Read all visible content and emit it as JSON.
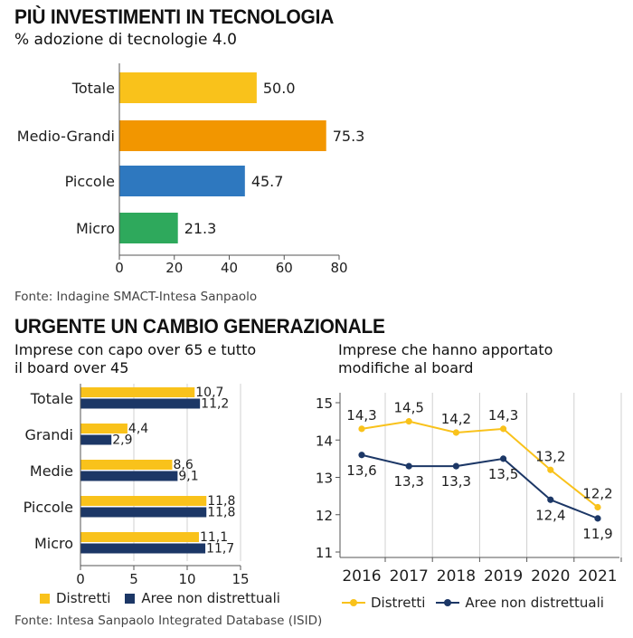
{
  "section1": {
    "title": "PIÙ INVESTIMENTI IN TECNOLOGIA",
    "subtitle": "% adozione di tecnologie 4.0",
    "source": "Fonte: Indagine SMACT-Intesa Sanpaolo"
  },
  "section2": {
    "title": "URGENTE UN CAMBIO GENERAZIONALE",
    "left_subtitle_line1": "Imprese con capo over 65 e tutto",
    "left_subtitle_line2": "il board over 45",
    "right_subtitle_line1": "Imprese che hanno apportato",
    "right_subtitle_line2": "modifiche al board",
    "legend_left": [
      {
        "label": "Distretti",
        "color": "#f9c21b"
      },
      {
        "label": "Aree non distrettuali",
        "color": "#1c3766"
      }
    ],
    "legend_right": [
      {
        "label": "Distretti",
        "color": "#f9c21b"
      },
      {
        "label": "Aree non distrettuali",
        "color": "#1c3766"
      }
    ],
    "source": "Fonte: Intesa Sanpaolo Integrated Database (ISID)"
  },
  "chart_data": [
    {
      "type": "bar",
      "orientation": "horizontal",
      "title": "PIÙ INVESTIMENTI IN TECNOLOGIA",
      "subtitle": "% adozione di tecnologie 4.0",
      "categories": [
        "Totale",
        "Medio-Grandi",
        "Piccole",
        "Micro"
      ],
      "values": [
        50.0,
        75.3,
        45.7,
        21.3
      ],
      "value_labels": [
        "50.0",
        "75.3",
        "45.7",
        "21.3"
      ],
      "colors": [
        "#f9c21b",
        "#f29600",
        "#2e78bf",
        "#2ea95c"
      ],
      "xlim": [
        0,
        80
      ],
      "xticks": [
        0,
        20,
        40,
        60,
        80
      ],
      "grid": false
    },
    {
      "type": "bar",
      "orientation": "horizontal",
      "title": "Imprese con capo over 65 e tutto il board over 45",
      "categories": [
        "Totale",
        "Grandi",
        "Medie",
        "Piccole",
        "Micro"
      ],
      "series": [
        {
          "name": "Distretti",
          "color": "#f9c21b",
          "values": [
            10.7,
            4.4,
            8.6,
            11.8,
            11.1
          ],
          "labels": [
            "10,7",
            "4,4",
            "8,6",
            "11,8",
            "11,1"
          ]
        },
        {
          "name": "Aree non distrettuali",
          "color": "#1c3766",
          "values": [
            11.2,
            2.9,
            9.1,
            11.8,
            11.7
          ],
          "labels": [
            "11,2",
            "2,9",
            "9,1",
            "11,8",
            "11,7"
          ]
        }
      ],
      "xlim": [
        0,
        15
      ],
      "xticks": [
        0,
        5,
        10,
        15
      ],
      "grid": true
    },
    {
      "type": "line",
      "title": "Imprese che hanno apportato modifiche al board",
      "x": [
        "2016",
        "2017",
        "2018",
        "2019",
        "2020",
        "2021"
      ],
      "series": [
        {
          "name": "Distretti",
          "color": "#f9c21b",
          "values": [
            14.3,
            14.5,
            14.2,
            14.3,
            13.2,
            12.2
          ],
          "labels": [
            "14,3",
            "14,5",
            "14,2",
            "14,3",
            "13,2",
            "12,2"
          ]
        },
        {
          "name": "Aree non distrettuali",
          "color": "#1c3766",
          "values": [
            13.6,
            13.3,
            13.3,
            13.5,
            12.4,
            11.9
          ],
          "labels": [
            "13,6",
            "13,3",
            "13,3",
            "13,5",
            "12,4",
            "11,9"
          ]
        }
      ],
      "ylim": [
        11,
        15
      ],
      "yticks": [
        11,
        12,
        13,
        14,
        15
      ],
      "grid": true
    }
  ]
}
